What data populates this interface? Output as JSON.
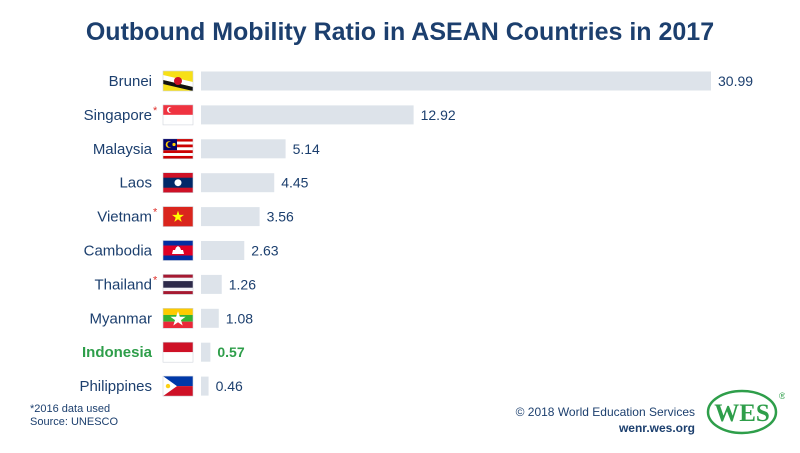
{
  "chart_data": {
    "type": "bar",
    "orientation": "horizontal",
    "title": "Outbound Mobility Ratio in ASEAN Countries in 2017",
    "categories": [
      "Brunei",
      "Singapore",
      "Malaysia",
      "Laos",
      "Vietnam",
      "Cambodia",
      "Thailand",
      "Myanmar",
      "Indonesia",
      "Philippines"
    ],
    "values": [
      30.99,
      12.92,
      5.14,
      4.45,
      3.56,
      2.63,
      1.26,
      1.08,
      0.57,
      0.46
    ],
    "value_labels": [
      "30.99",
      "12.92",
      "5.14",
      "4.45",
      "3.56",
      "2.63",
      "1.26",
      "1.08",
      "0.57",
      "0.46"
    ],
    "asterisked": [
      "Singapore",
      "Vietnam",
      "Thailand"
    ],
    "highlight": "Indonesia",
    "xlim": [
      0,
      30.99
    ],
    "colors": {
      "bar": "#dde3ea",
      "text": "#1c3f6e",
      "highlight": "#2e9e4a",
      "asterisk": "#e0302b"
    }
  },
  "footnote": {
    "note": "*2016 data used",
    "source": "Source: UNESCO"
  },
  "credit": {
    "copyright": "© 2018 World Education Services",
    "site": "wenr.wes.org"
  },
  "logo": {
    "text": "WES",
    "registered": "®"
  }
}
